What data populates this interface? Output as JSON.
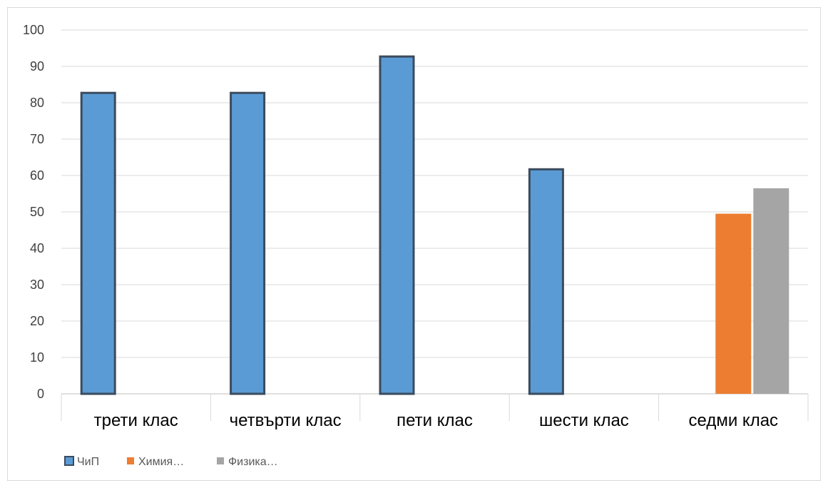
{
  "chart_data": {
    "type": "bar",
    "categories": [
      "трети клас",
      "четвърти клас",
      "пети клас",
      "шести клас",
      "седми клас"
    ],
    "series": [
      {
        "name": "ЧиП",
        "values": [
          83,
          83,
          93,
          62,
          null
        ],
        "color": "#5b9bd5",
        "outline": "#3b4b5e"
      },
      {
        "name": "Химия…",
        "values": [
          null,
          null,
          null,
          null,
          49.5
        ],
        "color": "#ed7d31",
        "outline": null
      },
      {
        "name": "Физика…",
        "values": [
          null,
          null,
          null,
          null,
          56.5
        ],
        "color": "#a5a5a5",
        "outline": null
      }
    ],
    "ylim": [
      0,
      100
    ],
    "yticks": [
      0,
      10,
      20,
      30,
      40,
      50,
      60,
      70,
      80,
      90,
      100
    ],
    "grid": true,
    "legend_position": "bottom-left",
    "title": "",
    "xlabel": "",
    "ylabel": ""
  }
}
